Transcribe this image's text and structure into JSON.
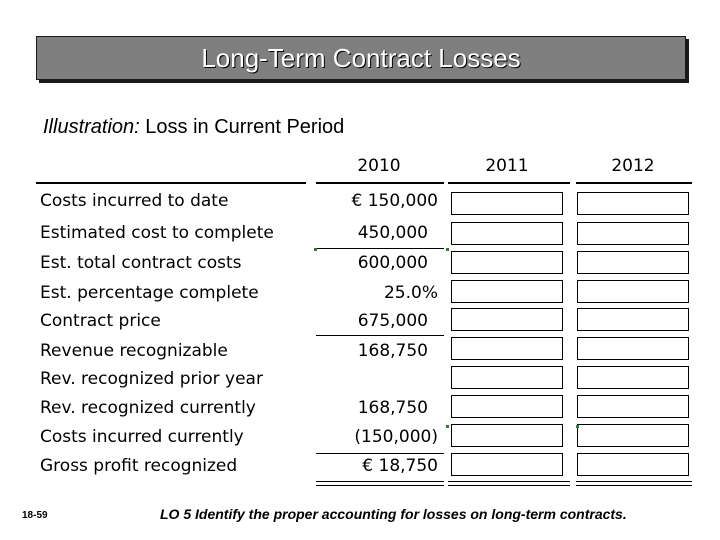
{
  "title": "Long-Term Contract Losses",
  "subtitle": {
    "lead": "Illustration:",
    "rest": "Loss in Current Period"
  },
  "years": [
    "2010",
    "2011",
    "2012"
  ],
  "rows": [
    {
      "label": "Costs incurred to date",
      "value": "€ 150,000"
    },
    {
      "label": "Estimated cost to complete",
      "value": "450,000"
    },
    {
      "label": "Est. total contract costs",
      "value": "600,000"
    },
    {
      "label": "Est. percentage complete",
      "value": "25.0%"
    },
    {
      "label": "Contract price",
      "value": "675,000"
    },
    {
      "label": "Revenue recognizable",
      "value": "168,750"
    },
    {
      "label": "Rev. recognized prior year",
      "value": ""
    },
    {
      "label": "Rev. recognized currently",
      "value": "168,750"
    },
    {
      "label": "Costs incurred currently",
      "value": "(150,000)"
    },
    {
      "label": "Gross profit recognized",
      "value": "€ 18,750"
    }
  ],
  "footer": {
    "slide_number": "18-59",
    "objective": "LO 5  Identify the proper accounting for losses on long-term contracts."
  },
  "colors": {
    "title_bg": "#7f7f7f",
    "tick_mark": "#2e7d32"
  }
}
